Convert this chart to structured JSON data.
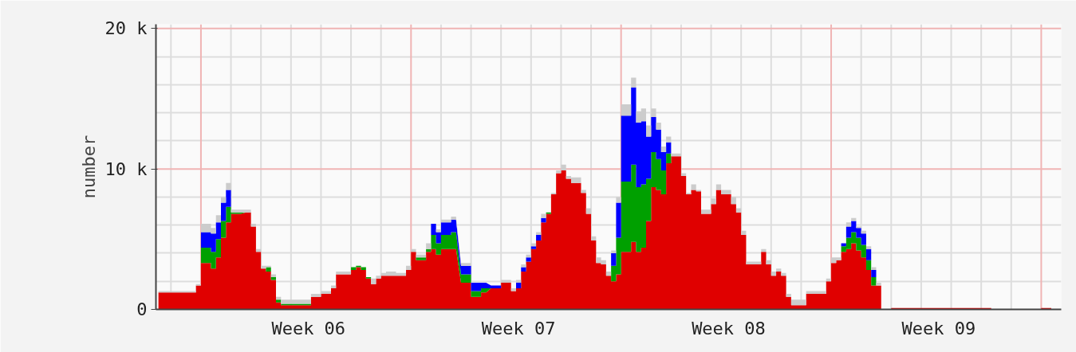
{
  "chart_data": {
    "type": "area",
    "stacked": true,
    "ylabel": "number",
    "grid": true,
    "categories": [
      null,
      null,
      null,
      null,
      null,
      null,
      null,
      null,
      null,
      null,
      null,
      null,
      null,
      null,
      null,
      null,
      null,
      null,
      null,
      null,
      null,
      null,
      null,
      null,
      null,
      null,
      null,
      null,
      null,
      null,
      "Week 06",
      null,
      null,
      null,
      null,
      null,
      null,
      null,
      null,
      null,
      null,
      null,
      null,
      null,
      null,
      null,
      null,
      null,
      null,
      null,
      null,
      null,
      null,
      null,
      null,
      null,
      null,
      null,
      null,
      null,
      null,
      null,
      null,
      null,
      null,
      null,
      null,
      null,
      null,
      null,
      null,
      null,
      "Week 07",
      null,
      null,
      null,
      null,
      null,
      null,
      null,
      null,
      null,
      null,
      null,
      null,
      null,
      null,
      null,
      null,
      null,
      null,
      null,
      null,
      null,
      null,
      null,
      null,
      null,
      null,
      null,
      null,
      null,
      null,
      null,
      null,
      null,
      null,
      null,
      null,
      null,
      null,
      null,
      null,
      null,
      "Week 08",
      null,
      null,
      null,
      null,
      null,
      null,
      null,
      null,
      null,
      null,
      null,
      null,
      null,
      null,
      null,
      null,
      null,
      null,
      null,
      null,
      null,
      null,
      null,
      null,
      null,
      null,
      null,
      null,
      null,
      null,
      null,
      null,
      null,
      null,
      null,
      null,
      null,
      null,
      null,
      null,
      null,
      "Week 09",
      null,
      null,
      null,
      null,
      null,
      null,
      null,
      null,
      null,
      null,
      null,
      null,
      null,
      null,
      null,
      null,
      null,
      null,
      null,
      null,
      null,
      null,
      null,
      null
    ],
    "series": [
      {
        "color": "#e00000",
        "values": [
          1200,
          1200,
          1200,
          1200,
          1200,
          1200,
          1200,
          1200,
          1700,
          3300,
          3300,
          2900,
          3700,
          5100,
          6200,
          6800,
          6800,
          null,
          6900,
          5900,
          4100,
          2900,
          2700,
          2100,
          500,
          300,
          300,
          300,
          300,
          300,
          300,
          900,
          900,
          1100,
          1100,
          1500,
          2500,
          2500,
          2500,
          2800,
          3000,
          2800,
          2200,
          1800,
          2200,
          2400,
          2400,
          2400,
          2400,
          2400,
          2800,
          4100,
          3500,
          3500,
          4100,
          4300,
          3900,
          4300,
          4300,
          4300,
          null,
          1900,
          1900,
          900,
          900,
          1200,
          null,
          1500,
          1500,
          1900,
          1900,
          1300,
          1500,
          2700,
          3400,
          4300,
          4900,
          6200,
          6800,
          8200,
          9700,
          9900,
          9300,
          9000,
          9000,
          8300,
          6800,
          4900,
          3300,
          3200,
          2400,
          2000,
          2500,
          4100,
          4100,
          4800,
          4100,
          4400,
          6300,
          8700,
          8500,
          8200,
          10400,
          10900,
          10900,
          9500,
          8200,
          8500,
          8400,
          6800,
          6800,
          7500,
          8500,
          8200,
          8200,
          7500,
          6900,
          5300,
          3200,
          3200,
          3200,
          4100,
          3200,
          2400,
          2700,
          2400,
          900,
          300,
          300,
          300,
          1100,
          1100,
          1100,
          1100,
          2000,
          3300,
          3500,
          4100,
          4300,
          4700,
          4200,
          3700,
          2800,
          1700,
          1700,
          0,
          0,
          100,
          100,
          100,
          100,
          100,
          100,
          100,
          100,
          100,
          100,
          100,
          100,
          100,
          100,
          100,
          100,
          100,
          100,
          100,
          100,
          0,
          0,
          0,
          0,
          0,
          0,
          0,
          0,
          0,
          0,
          100,
          100,
          0,
          0
        ]
      },
      {
        "color": "#00a000",
        "values": [
          0,
          0,
          0,
          0,
          0,
          0,
          0,
          0,
          0,
          1100,
          1100,
          1200,
          1300,
          1200,
          1100,
          100,
          100,
          null,
          0,
          0,
          0,
          0,
          300,
          200,
          200,
          100,
          100,
          100,
          100,
          100,
          100,
          0,
          0,
          0,
          0,
          0,
          0,
          0,
          0,
          200,
          100,
          200,
          100,
          0,
          0,
          0,
          0,
          0,
          0,
          0,
          0,
          0,
          200,
          200,
          200,
          1000,
          800,
          1000,
          1000,
          1200,
          null,
          600,
          600,
          400,
          400,
          300,
          null,
          0,
          0,
          0,
          0,
          0,
          0,
          0,
          0,
          0,
          0,
          0,
          100,
          0,
          0,
          0,
          0,
          0,
          0,
          0,
          0,
          0,
          0,
          0,
          0,
          1100,
          2600,
          5000,
          5000,
          5500,
          4600,
          4500,
          3000,
          2500,
          2200,
          1700,
          700,
          0,
          0,
          0,
          0,
          0,
          0,
          0,
          0,
          0,
          0,
          0,
          0,
          0,
          0,
          0,
          0,
          0,
          0,
          0,
          0,
          0,
          0,
          0,
          0,
          0,
          0,
          0,
          0,
          0,
          0,
          0,
          0,
          0,
          0,
          400,
          800,
          800,
          900,
          900,
          700,
          600,
          0,
          0,
          0,
          0,
          0,
          0,
          0,
          0,
          0,
          0,
          0,
          0,
          0,
          0,
          0,
          0,
          0,
          0,
          0,
          0,
          0,
          0,
          0,
          0,
          0,
          0,
          0,
          0,
          0,
          0,
          0,
          0,
          0,
          0,
          0,
          0,
          0
        ]
      },
      {
        "color": "#0000ff",
        "values": [
          0,
          0,
          0,
          0,
          0,
          0,
          0,
          0,
          0,
          1100,
          1100,
          1300,
          1200,
          1300,
          1200,
          0,
          0,
          null,
          0,
          0,
          0,
          0,
          0,
          0,
          0,
          0,
          0,
          0,
          0,
          0,
          0,
          0,
          0,
          0,
          0,
          0,
          0,
          0,
          0,
          0,
          0,
          0,
          0,
          0,
          0,
          0,
          0,
          0,
          0,
          0,
          0,
          0,
          0,
          0,
          0,
          800,
          800,
          900,
          900,
          900,
          null,
          600,
          600,
          600,
          600,
          400,
          null,
          200,
          200,
          0,
          0,
          0,
          400,
          300,
          300,
          200,
          400,
          300,
          0,
          0,
          0,
          0,
          0,
          0,
          0,
          0,
          0,
          0,
          0,
          0,
          0,
          900,
          2500,
          4700,
          4700,
          5500,
          4600,
          4500,
          3000,
          2500,
          2100,
          1300,
          800,
          0,
          0,
          0,
          0,
          0,
          0,
          0,
          0,
          0,
          0,
          0,
          0,
          0,
          0,
          0,
          0,
          0,
          0,
          0,
          0,
          0,
          0,
          0,
          0,
          0,
          0,
          0,
          0,
          0,
          0,
          0,
          0,
          0,
          0,
          200,
          800,
          800,
          700,
          800,
          800,
          500,
          0,
          0,
          0,
          0,
          0,
          0,
          0,
          0,
          0,
          0,
          0,
          0,
          0,
          0,
          0,
          0,
          0,
          0,
          0,
          0,
          0,
          0,
          0,
          0,
          0,
          0,
          0,
          0,
          0,
          0,
          0,
          0,
          0,
          0,
          0,
          0,
          0
        ]
      },
      {
        "color": "#cccccc",
        "values": [
          100,
          100,
          100,
          100,
          100,
          100,
          100,
          100,
          100,
          600,
          600,
          400,
          500,
          400,
          500,
          200,
          200,
          null,
          200,
          200,
          200,
          200,
          100,
          200,
          200,
          300,
          300,
          300,
          300,
          300,
          300,
          200,
          200,
          200,
          200,
          200,
          200,
          200,
          200,
          0,
          0,
          0,
          0,
          400,
          200,
          200,
          300,
          300,
          200,
          200,
          300,
          200,
          200,
          200,
          400,
          0,
          200,
          200,
          200,
          200,
          null,
          200,
          200,
          0,
          0,
          0,
          null,
          0,
          0,
          200,
          200,
          200,
          200,
          200,
          200,
          200,
          200,
          300,
          0,
          100,
          200,
          400,
          200,
          400,
          400,
          200,
          400,
          300,
          400,
          300,
          300,
          200,
          400,
          800,
          800,
          700,
          800,
          900,
          800,
          600,
          500,
          400,
          400,
          200,
          200,
          200,
          100,
          400,
          100,
          300,
          300,
          400,
          400,
          300,
          300,
          500,
          300,
          300,
          200,
          200,
          200,
          200,
          300,
          300,
          200,
          200,
          200,
          400,
          400,
          400,
          200,
          200,
          200,
          200,
          200,
          400,
          200,
          0,
          300,
          200,
          100,
          200,
          200,
          200,
          200,
          0,
          0,
          0,
          0,
          0,
          0,
          0,
          0,
          0,
          0,
          0,
          0,
          0,
          0,
          0,
          0,
          0,
          0,
          0,
          0,
          0,
          0,
          0,
          0,
          0,
          0,
          0,
          0,
          0,
          0,
          0,
          0,
          0,
          0,
          0,
          0
        ]
      }
    ],
    "ylim": [
      0,
      20300
    ],
    "yticks": [
      0,
      {
        "value": 10000,
        "label": "10 k"
      },
      {
        "value": 20000,
        "label": "20 k"
      },
      {
        "value": 2000,
        "label": null
      },
      {
        "value": 4000,
        "label": null
      },
      {
        "value": 6000,
        "label": null
      },
      {
        "value": 8000,
        "label": null
      },
      {
        "value": 12000,
        "label": null
      },
      {
        "value": 14000,
        "label": null
      },
      {
        "value": 16000,
        "label": null
      },
      {
        "value": 18000,
        "label": null
      }
    ]
  }
}
